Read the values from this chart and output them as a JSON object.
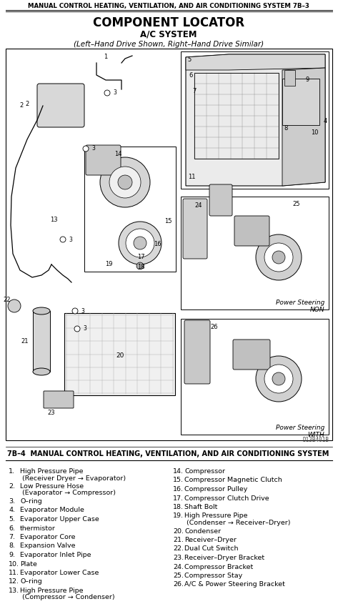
{
  "header_text": "MANUAL CONTROL HEATING, VENTILATION, AND AIR CONDITIONING SYSTEM 7B–3",
  "title": "COMPONENT LOCATOR",
  "subtitle": "A/C SYSTEM",
  "subtitle2": "(Left–Hand Drive Shown, Right–Hand Drive Similar)",
  "footer_header": "7B–4  MANUAL CONTROL HEATING, VENTILATION, AND AIR CONDITIONING SYSTEM",
  "diagram_code": "D13B401B",
  "items_left": [
    [
      "1.",
      "High Pressure Pipe",
      "(Receiver Dryer → Evaporator)"
    ],
    [
      "2.",
      "Low Pressure Hose",
      "(Evaporator → Compressor)"
    ],
    [
      "3.",
      "O–ring",
      null
    ],
    [
      "4.",
      "Evaporator Module",
      null
    ],
    [
      "5.",
      "Evaporator Upper Case",
      null
    ],
    [
      "6.",
      "thermistor",
      null
    ],
    [
      "7.",
      "Evaporator Core",
      null
    ],
    [
      "8.",
      "Expansion Valve",
      null
    ],
    [
      "9.",
      "Evaporator Inlet Pipe",
      null
    ],
    [
      "10.",
      "Plate",
      null
    ],
    [
      "11.",
      "Evaporator Lower Case",
      null
    ],
    [
      "12.",
      "O–ring",
      null
    ],
    [
      "13.",
      "High Pressure Pipe",
      "(Compressor → Condenser)"
    ]
  ],
  "items_right": [
    [
      "14.",
      "Compressor",
      null
    ],
    [
      "15.",
      "Compressor Magnetic Clutch",
      null
    ],
    [
      "16.",
      "Compressor Pulley",
      null
    ],
    [
      "17.",
      "Compressor Clutch Drive",
      null
    ],
    [
      "18.",
      "Shaft Bolt",
      null
    ],
    [
      "19.",
      "High Pressure Pipe",
      "(Condenser → Receiver–Dryer)"
    ],
    [
      "20.",
      "Condenser",
      null
    ],
    [
      "21.",
      "Receiver–Dryer",
      null
    ],
    [
      "22.",
      "Dual Cut Switch",
      null
    ],
    [
      "23.",
      "Receiver–Dryer Bracket",
      null
    ],
    [
      "24.",
      "Compressor Bracket",
      null
    ],
    [
      "25.",
      "Compressor Stay",
      null
    ],
    [
      "26.",
      "A/C & Power Steering Bracket",
      null
    ]
  ],
  "bg_color": "#ffffff",
  "text_color": "#000000",
  "header_fontsize": 6.2,
  "title_fontsize": 12,
  "subtitle_fontsize": 8.5,
  "list_fontsize": 6.8,
  "footer_fontsize": 7.0
}
